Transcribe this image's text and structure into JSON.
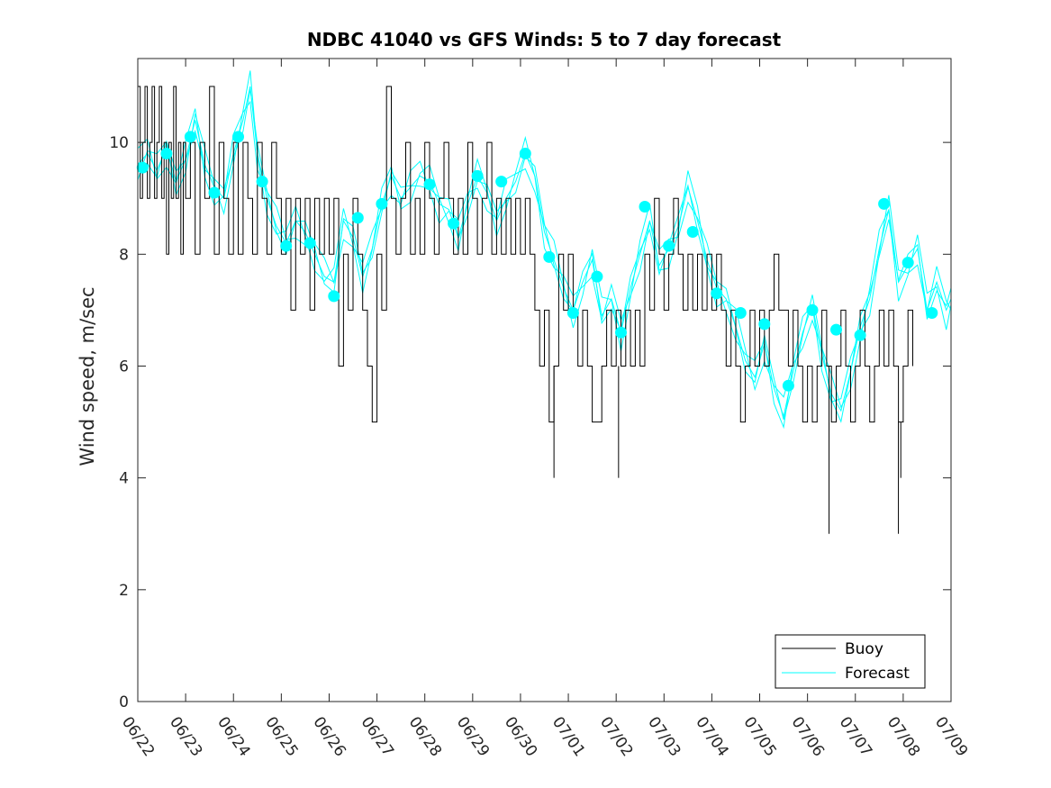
{
  "chart_data": {
    "type": "line",
    "title": "NDBC 41040 vs GFS Winds: 5 to 7 day forecast",
    "xlabel": "",
    "ylabel": "Wind speed, m/sec",
    "x_tick_labels": [
      "06/22",
      "06/23",
      "06/24",
      "06/25",
      "06/26",
      "06/27",
      "06/28",
      "06/29",
      "06/30",
      "07/01",
      "07/02",
      "07/03",
      "07/04",
      "07/05",
      "07/06",
      "07/07",
      "07/08",
      "07/09"
    ],
    "xlim": [
      0,
      17
    ],
    "ylim": [
      0,
      11.5
    ],
    "y_ticks": [
      0,
      2,
      4,
      6,
      8,
      10
    ],
    "grid": false,
    "legend_position": "bottom-right",
    "colors": {
      "buoy": "#000000",
      "forecast": "#00ffff"
    },
    "series": [
      {
        "name": "Buoy",
        "x_unit": "days since 06/22",
        "points": [
          [
            0,
            11
          ],
          [
            0.05,
            9
          ],
          [
            0.1,
            10
          ],
          [
            0.15,
            11
          ],
          [
            0.2,
            9
          ],
          [
            0.25,
            10
          ],
          [
            0.3,
            11
          ],
          [
            0.35,
            9
          ],
          [
            0.4,
            10
          ],
          [
            0.45,
            11
          ],
          [
            0.5,
            9
          ],
          [
            0.55,
            10
          ],
          [
            0.6,
            8
          ],
          [
            0.65,
            10
          ],
          [
            0.7,
            9
          ],
          [
            0.75,
            11
          ],
          [
            0.8,
            9
          ],
          [
            0.85,
            10
          ],
          [
            0.9,
            8
          ],
          [
            0.95,
            10
          ],
          [
            1.0,
            9
          ],
          [
            1.1,
            10
          ],
          [
            1.2,
            8
          ],
          [
            1.3,
            10
          ],
          [
            1.4,
            9
          ],
          [
            1.5,
            11
          ],
          [
            1.6,
            8
          ],
          [
            1.7,
            10
          ],
          [
            1.8,
            9
          ],
          [
            1.9,
            8
          ],
          [
            2.0,
            10
          ],
          [
            2.1,
            8
          ],
          [
            2.2,
            10
          ],
          [
            2.3,
            9
          ],
          [
            2.4,
            8
          ],
          [
            2.5,
            10
          ],
          [
            2.6,
            9
          ],
          [
            2.7,
            8
          ],
          [
            2.8,
            10
          ],
          [
            2.9,
            9
          ],
          [
            3.0,
            8
          ],
          [
            3.1,
            9
          ],
          [
            3.2,
            7
          ],
          [
            3.3,
            9
          ],
          [
            3.4,
            8
          ],
          [
            3.5,
            9
          ],
          [
            3.6,
            7
          ],
          [
            3.7,
            9
          ],
          [
            3.8,
            8
          ],
          [
            3.9,
            9
          ],
          [
            4.0,
            8
          ],
          [
            4.1,
            9
          ],
          [
            4.2,
            6
          ],
          [
            4.3,
            8
          ],
          [
            4.4,
            7
          ],
          [
            4.5,
            9
          ],
          [
            4.6,
            8
          ],
          [
            4.7,
            7
          ],
          [
            4.8,
            6
          ],
          [
            4.9,
            5
          ],
          [
            5.0,
            8
          ],
          [
            5.1,
            7
          ],
          [
            5.2,
            11
          ],
          [
            5.3,
            9
          ],
          [
            5.4,
            8
          ],
          [
            5.5,
            9
          ],
          [
            5.6,
            10
          ],
          [
            5.7,
            8
          ],
          [
            5.8,
            9
          ],
          [
            5.9,
            8
          ],
          [
            6.0,
            10
          ],
          [
            6.1,
            9
          ],
          [
            6.2,
            8
          ],
          [
            6.3,
            9
          ],
          [
            6.4,
            10
          ],
          [
            6.5,
            9
          ],
          [
            6.6,
            8
          ],
          [
            6.7,
            9
          ],
          [
            6.8,
            8
          ],
          [
            6.9,
            10
          ],
          [
            7.0,
            9
          ],
          [
            7.1,
            8
          ],
          [
            7.2,
            9
          ],
          [
            7.3,
            10
          ],
          [
            7.4,
            8
          ],
          [
            7.5,
            9
          ],
          [
            7.6,
            8
          ],
          [
            7.7,
            9
          ],
          [
            7.8,
            8
          ],
          [
            7.9,
            9
          ],
          [
            8.0,
            8
          ],
          [
            8.1,
            9
          ],
          [
            8.2,
            8
          ],
          [
            8.3,
            7
          ],
          [
            8.4,
            6
          ],
          [
            8.5,
            7
          ],
          [
            8.6,
            5
          ],
          [
            8.7,
            6
          ],
          [
            8.8,
            8
          ],
          [
            8.9,
            7
          ],
          [
            9.0,
            8
          ],
          [
            9.1,
            7
          ],
          [
            9.2,
            6
          ],
          [
            9.3,
            7
          ],
          [
            9.4,
            6
          ],
          [
            9.5,
            5
          ],
          [
            9.6,
            5
          ],
          [
            9.7,
            6
          ],
          [
            9.8,
            7
          ],
          [
            9.9,
            6
          ],
          [
            10.0,
            7
          ],
          [
            10.1,
            6
          ],
          [
            10.2,
            7
          ],
          [
            10.3,
            6
          ],
          [
            10.4,
            7
          ],
          [
            10.5,
            6
          ],
          [
            10.6,
            8
          ],
          [
            10.7,
            7
          ],
          [
            10.8,
            9
          ],
          [
            10.9,
            8
          ],
          [
            11.0,
            7
          ],
          [
            11.1,
            8
          ],
          [
            11.2,
            9
          ],
          [
            11.3,
            8
          ],
          [
            11.4,
            7
          ],
          [
            11.5,
            8
          ],
          [
            11.6,
            7
          ],
          [
            11.7,
            8
          ],
          [
            11.8,
            7
          ],
          [
            11.9,
            8
          ],
          [
            12.0,
            7
          ],
          [
            12.1,
            8
          ],
          [
            12.2,
            7
          ],
          [
            12.3,
            6
          ],
          [
            12.4,
            7
          ],
          [
            12.5,
            6
          ],
          [
            12.6,
            5
          ],
          [
            12.7,
            6
          ],
          [
            12.8,
            7
          ],
          [
            12.9,
            6
          ],
          [
            13.0,
            7
          ],
          [
            13.1,
            6
          ],
          [
            13.2,
            7
          ],
          [
            13.3,
            8
          ],
          [
            13.4,
            7
          ],
          [
            13.5,
            7
          ],
          [
            13.6,
            6
          ],
          [
            13.7,
            7
          ],
          [
            13.8,
            6
          ],
          [
            13.9,
            5
          ],
          [
            14.0,
            6
          ],
          [
            14.1,
            5
          ],
          [
            14.2,
            6
          ],
          [
            14.3,
            7
          ],
          [
            14.4,
            6
          ],
          [
            14.5,
            5
          ],
          [
            14.6,
            6
          ],
          [
            14.7,
            7
          ],
          [
            14.8,
            6
          ],
          [
            14.9,
            5
          ],
          [
            15.0,
            6
          ],
          [
            15.1,
            7
          ],
          [
            15.2,
            6
          ],
          [
            15.3,
            5
          ],
          [
            15.4,
            6
          ],
          [
            15.5,
            7
          ],
          [
            15.6,
            6
          ],
          [
            15.7,
            7
          ],
          [
            15.8,
            6
          ],
          [
            15.9,
            5
          ],
          [
            16.0,
            6
          ],
          [
            16.1,
            7
          ],
          [
            16.2,
            6
          ]
        ],
        "spikes": [
          [
            4.9,
            5
          ],
          [
            8.7,
            4
          ],
          [
            10.05,
            4
          ],
          [
            14.45,
            3
          ],
          [
            15.9,
            3
          ],
          [
            15.95,
            4
          ]
        ]
      },
      {
        "name": "Forecast",
        "x_unit": "days since 06/22",
        "markers": [
          [
            0.1,
            9.55
          ],
          [
            0.6,
            9.8
          ],
          [
            1.1,
            10.1
          ],
          [
            1.6,
            9.1
          ],
          [
            2.1,
            10.1
          ],
          [
            2.6,
            9.3
          ],
          [
            3.1,
            8.15
          ],
          [
            3.6,
            8.2
          ],
          [
            4.1,
            7.25
          ],
          [
            4.6,
            8.65
          ],
          [
            5.1,
            8.9
          ],
          [
            6.1,
            9.25
          ],
          [
            6.6,
            8.55
          ],
          [
            7.1,
            9.4
          ],
          [
            7.6,
            9.3
          ],
          [
            8.1,
            9.8
          ],
          [
            8.6,
            7.95
          ],
          [
            9.1,
            6.95
          ],
          [
            9.6,
            7.6
          ],
          [
            10.1,
            6.6
          ],
          [
            10.6,
            8.85
          ],
          [
            11.1,
            8.15
          ],
          [
            11.6,
            8.4
          ],
          [
            12.1,
            7.3
          ],
          [
            12.6,
            6.95
          ],
          [
            13.1,
            6.75
          ],
          [
            13.6,
            5.65
          ],
          [
            14.1,
            7.0
          ],
          [
            14.6,
            6.65
          ],
          [
            15.1,
            6.55
          ],
          [
            15.6,
            8.9
          ],
          [
            16.1,
            7.85
          ],
          [
            16.6,
            6.95
          ]
        ],
        "curve": [
          [
            0,
            9.6
          ],
          [
            0.2,
            9.8
          ],
          [
            0.4,
            9.5
          ],
          [
            0.6,
            9.9
          ],
          [
            0.8,
            9.3
          ],
          [
            1.0,
            9.7
          ],
          [
            1.2,
            10.4
          ],
          [
            1.4,
            9.6
          ],
          [
            1.6,
            9.2
          ],
          [
            1.8,
            9.0
          ],
          [
            2.0,
            9.8
          ],
          [
            2.2,
            10.4
          ],
          [
            2.35,
            11.0
          ],
          [
            2.5,
            9.8
          ],
          [
            2.7,
            9.0
          ],
          [
            2.9,
            8.5
          ],
          [
            3.1,
            8.2
          ],
          [
            3.3,
            8.6
          ],
          [
            3.5,
            8.4
          ],
          [
            3.7,
            8.0
          ],
          [
            3.9,
            7.6
          ],
          [
            4.1,
            7.5
          ],
          [
            4.3,
            8.6
          ],
          [
            4.5,
            8.3
          ],
          [
            4.7,
            7.6
          ],
          [
            4.9,
            8.1
          ],
          [
            5.1,
            8.9
          ],
          [
            5.3,
            9.4
          ],
          [
            5.5,
            9.0
          ],
          [
            5.7,
            9.2
          ],
          [
            5.9,
            9.4
          ],
          [
            6.1,
            9.3
          ],
          [
            6.3,
            8.9
          ],
          [
            6.5,
            8.8
          ],
          [
            6.7,
            8.3
          ],
          [
            6.9,
            8.9
          ],
          [
            7.1,
            9.4
          ],
          [
            7.3,
            9.1
          ],
          [
            7.5,
            8.6
          ],
          [
            7.7,
            9.0
          ],
          [
            7.9,
            9.3
          ],
          [
            8.1,
            9.8
          ],
          [
            8.3,
            9.4
          ],
          [
            8.5,
            8.4
          ],
          [
            8.7,
            7.9
          ],
          [
            8.9,
            7.4
          ],
          [
            9.1,
            7.0
          ],
          [
            9.3,
            7.5
          ],
          [
            9.5,
            7.9
          ],
          [
            9.7,
            6.9
          ],
          [
            9.9,
            7.2
          ],
          [
            10.1,
            6.6
          ],
          [
            10.3,
            7.4
          ],
          [
            10.5,
            8.0
          ],
          [
            10.7,
            8.6
          ],
          [
            10.9,
            7.8
          ],
          [
            11.1,
            8.1
          ],
          [
            11.3,
            8.5
          ],
          [
            11.5,
            9.2
          ],
          [
            11.7,
            8.6
          ],
          [
            11.9,
            7.9
          ],
          [
            12.1,
            7.4
          ],
          [
            12.3,
            7.2
          ],
          [
            12.5,
            6.7
          ],
          [
            12.7,
            6.1
          ],
          [
            12.9,
            5.8
          ],
          [
            13.1,
            6.4
          ],
          [
            13.3,
            5.6
          ],
          [
            13.5,
            5.1
          ],
          [
            13.7,
            5.9
          ],
          [
            13.9,
            6.6
          ],
          [
            14.1,
            7.1
          ],
          [
            14.3,
            6.2
          ],
          [
            14.5,
            5.5
          ],
          [
            14.7,
            5.2
          ],
          [
            14.9,
            5.9
          ],
          [
            15.1,
            6.7
          ],
          [
            15.3,
            7.2
          ],
          [
            15.5,
            8.1
          ],
          [
            15.7,
            8.8
          ],
          [
            15.9,
            7.5
          ],
          [
            16.1,
            7.8
          ],
          [
            16.3,
            8.1
          ],
          [
            16.5,
            7.0
          ],
          [
            16.7,
            7.5
          ],
          [
            16.9,
            7.0
          ],
          [
            17.0,
            7.2
          ]
        ]
      }
    ]
  }
}
